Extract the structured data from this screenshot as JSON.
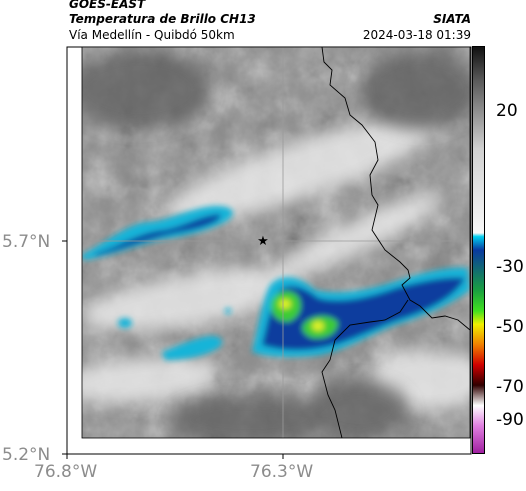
{
  "header": {
    "satellite": "GOES-EAST",
    "product": "Temperatura de Brillo CH13",
    "area": "Vía Medellín - Quibdó 50km",
    "organization": "SIATA",
    "datetime": "2024-03-18 01:39"
  },
  "map": {
    "lat_ticks": [
      "5.7°N",
      "5.2°N"
    ],
    "lon_ticks": [
      "76.8°W",
      "76.3°W"
    ],
    "station_marker": "star-icon"
  },
  "colorbar": {
    "tick_labels": [
      "20",
      "-30",
      "-50",
      "-70",
      "-90"
    ],
    "stops": [
      {
        "value": 30,
        "color": "#111111"
      },
      {
        "value": 20,
        "color": "#5a5a5a"
      },
      {
        "value": 0,
        "color": "#d0d0d0"
      },
      {
        "value": -25,
        "color": "#f8f8f8"
      },
      {
        "value": -26,
        "color": "#00d0f0"
      },
      {
        "value": -30,
        "color": "#0a3aa0"
      },
      {
        "value": -42,
        "color": "#1aa040"
      },
      {
        "value": -48,
        "color": "#40e020"
      },
      {
        "value": -52,
        "color": "#f0f000"
      },
      {
        "value": -58,
        "color": "#f08000"
      },
      {
        "value": -64,
        "color": "#d00000"
      },
      {
        "value": -70,
        "color": "#300000"
      },
      {
        "value": -76,
        "color": "#ffffff"
      },
      {
        "value": -82,
        "color": "#e080e0"
      },
      {
        "value": -90,
        "color": "#a020a0"
      }
    ]
  },
  "colors": {
    "cloud_light": "#f0f0f0",
    "cloud_dark": "#707070",
    "cold_cyan": "#17b4d8",
    "cold_blue": "#0a3c9e",
    "cold_green": "#3ccc36",
    "cold_yellow": "#dff02b"
  }
}
